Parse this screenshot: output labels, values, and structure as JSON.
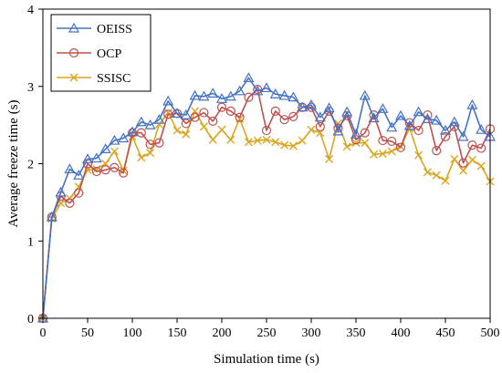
{
  "chart_data": {
    "type": "line",
    "xlabel": "Simulation time (s)",
    "ylabel": "Average freeze time (s)",
    "xlim": [
      0,
      500
    ],
    "ylim": [
      0,
      4
    ],
    "xticks": [
      0,
      50,
      100,
      150,
      200,
      250,
      300,
      350,
      400,
      450,
      500
    ],
    "yticks": [
      0,
      1,
      2,
      3,
      4
    ],
    "grid": false,
    "legend_position": "top-left",
    "x": [
      0,
      10,
      20,
      30,
      40,
      50,
      60,
      70,
      80,
      90,
      100,
      110,
      120,
      130,
      140,
      150,
      160,
      170,
      180,
      190,
      200,
      210,
      220,
      230,
      240,
      250,
      260,
      270,
      280,
      290,
      300,
      310,
      320,
      330,
      340,
      350,
      360,
      370,
      380,
      390,
      400,
      410,
      420,
      430,
      440,
      450,
      460,
      470,
      480,
      490,
      500
    ],
    "series": [
      {
        "name": "OEISS",
        "color": "#4472C4",
        "marker": "triangle",
        "values": [
          0,
          1.31,
          1.63,
          1.93,
          1.85,
          2.06,
          2.07,
          2.19,
          2.3,
          2.33,
          2.41,
          2.54,
          2.5,
          2.57,
          2.81,
          2.65,
          2.63,
          2.88,
          2.87,
          2.91,
          2.84,
          2.87,
          2.94,
          3.11,
          2.94,
          2.98,
          2.9,
          2.88,
          2.86,
          2.73,
          2.76,
          2.6,
          2.72,
          2.42,
          2.67,
          2.38,
          2.88,
          2.59,
          2.71,
          2.47,
          2.62,
          2.49,
          2.67,
          2.58,
          2.56,
          2.43,
          2.54,
          2.35,
          2.76,
          2.44,
          2.35
        ]
      },
      {
        "name": "OCP",
        "color": "#C0504D",
        "marker": "circle",
        "values": [
          0,
          1.31,
          1.58,
          1.49,
          1.62,
          2.0,
          1.9,
          1.92,
          1.95,
          1.88,
          2.4,
          2.4,
          2.25,
          2.27,
          2.64,
          2.65,
          2.52,
          2.6,
          2.66,
          2.55,
          2.73,
          2.68,
          2.6,
          2.86,
          2.96,
          2.43,
          2.68,
          2.57,
          2.61,
          2.73,
          2.73,
          2.48,
          2.68,
          2.46,
          2.62,
          2.31,
          2.4,
          2.63,
          2.3,
          2.29,
          2.21,
          2.53,
          2.43,
          2.63,
          2.17,
          2.35,
          2.48,
          2.01,
          2.24,
          2.2,
          2.45
        ]
      },
      {
        "name": "SSISC",
        "color": "#DAA520",
        "marker": "x",
        "values": [
          0,
          1.29,
          1.49,
          1.55,
          1.7,
          1.92,
          1.93,
          2.0,
          2.16,
          1.91,
          2.35,
          2.08,
          2.14,
          2.51,
          2.66,
          2.43,
          2.38,
          2.68,
          2.48,
          2.31,
          2.44,
          2.31,
          2.58,
          2.28,
          2.3,
          2.31,
          2.28,
          2.24,
          2.23,
          2.3,
          2.44,
          2.4,
          2.06,
          2.52,
          2.22,
          2.27,
          2.27,
          2.12,
          2.13,
          2.16,
          2.22,
          2.46,
          2.11,
          1.89,
          1.85,
          1.78,
          2.06,
          1.91,
          2.05,
          1.97,
          1.77
        ]
      }
    ]
  }
}
